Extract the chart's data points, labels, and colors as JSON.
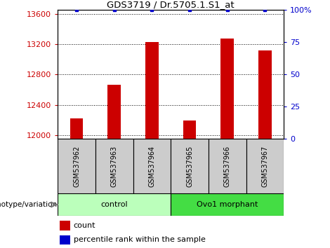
{
  "title": "GDS3719 / Dr.5705.1.S1_at",
  "samples": [
    "GSM537962",
    "GSM537963",
    "GSM537964",
    "GSM537965",
    "GSM537966",
    "GSM537967"
  ],
  "counts": [
    12220,
    12660,
    13230,
    12190,
    13270,
    13120
  ],
  "percentiles": [
    100,
    100,
    100,
    100,
    100,
    100
  ],
  "ylim_left": [
    11950,
    13650
  ],
  "ylim_right": [
    0,
    100
  ],
  "yticks_left": [
    12000,
    12400,
    12800,
    13200,
    13600
  ],
  "yticks_right": [
    0,
    25,
    50,
    75,
    100
  ],
  "bar_color": "#cc0000",
  "percentile_color": "#0000cc",
  "control_label": "control",
  "morphant_label": "Ovo1 morphant",
  "control_color": "#bbffbb",
  "morphant_color": "#44dd44",
  "legend_count_label": "count",
  "legend_percentile_label": "percentile rank within the sample",
  "bar_width": 0.35,
  "genotype_label": "genotype/variation",
  "label_bg_color": "#cccccc",
  "n_control": 3,
  "n_morphant": 3
}
